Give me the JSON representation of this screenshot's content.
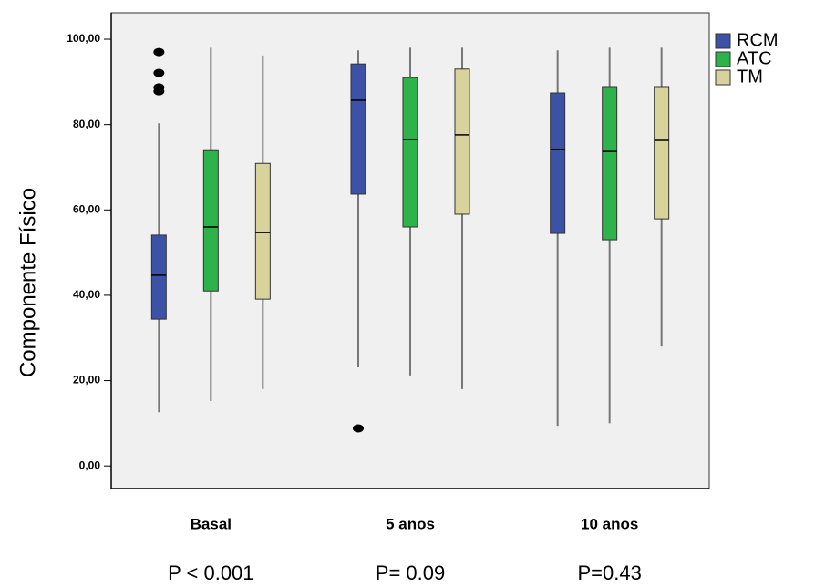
{
  "chart_data": {
    "type": "box",
    "y_label": "Componente Físico",
    "categories": [
      "Basal",
      "5 anos",
      "10 anos"
    ],
    "annotations": [
      "P < 0.001",
      "P= 0.09",
      "P=0.43"
    ],
    "ylim": [
      -5.3,
      106.2
    ],
    "yticks": [
      {
        "value": 0,
        "label": "0,00"
      },
      {
        "value": 20,
        "label": "20,00"
      },
      {
        "value": 40,
        "label": "40,00"
      },
      {
        "value": 60,
        "label": "60,00"
      },
      {
        "value": 80,
        "label": "80,00"
      },
      {
        "value": 100,
        "label": "100,00"
      }
    ],
    "legend": "right",
    "series": [
      {
        "name": "RCM",
        "color": "#3b52a6",
        "low": [
          12.6,
          23.1,
          9.4
        ],
        "q1": [
          34.4,
          63.7,
          54.5
        ],
        "median": [
          44.7,
          85.7,
          74.1
        ],
        "q3": [
          54.1,
          94.2,
          87.4
        ],
        "high": [
          80.3,
          97.4,
          97.4
        ],
        "outliers": [
          [
            97,
            92.1,
            88.7,
            87.8
          ],
          [
            8.8
          ],
          []
        ]
      },
      {
        "name": "ATC",
        "color": "#2eb34b",
        "low": [
          15.2,
          21.2,
          10
        ],
        "q1": [
          41,
          56,
          53
        ],
        "median": [
          56,
          76.5,
          73.7
        ],
        "q3": [
          73.9,
          91,
          88.9
        ],
        "high": [
          98,
          98,
          98
        ],
        "outliers": [
          [],
          [],
          []
        ]
      },
      {
        "name": "TM",
        "color": "#d8d29b",
        "low": [
          18,
          18,
          28
        ],
        "q1": [
          39.1,
          59,
          57.9
        ],
        "median": [
          54.7,
          77.6,
          76.3
        ],
        "q3": [
          70.9,
          93,
          88.9
        ],
        "high": [
          96.2,
          98,
          98
        ],
        "outliers": [
          [],
          [],
          []
        ]
      }
    ]
  }
}
